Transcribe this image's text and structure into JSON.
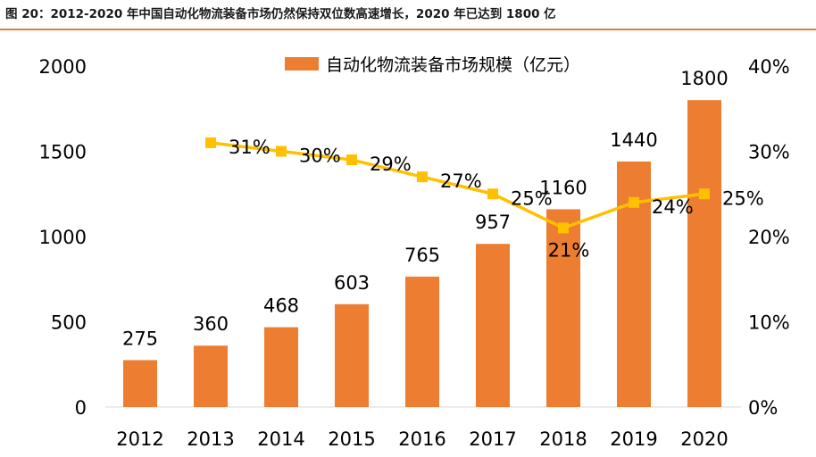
{
  "figure": {
    "title": "图 20：2012-2020 年中国自动化物流装备市场仍然保持双位数高速增长，2020 年已达到 1800 亿"
  },
  "colors": {
    "bar": "#ed7d31",
    "line": "#ffc000",
    "title_rule": "#e07b39"
  },
  "chart_data": {
    "type": "bar",
    "categories": [
      "2012",
      "2013",
      "2014",
      "2015",
      "2016",
      "2017",
      "2018",
      "2019",
      "2020"
    ],
    "series": [
      {
        "name": "自动化物流装备市场规模（亿元）",
        "type": "bar",
        "axis": "left",
        "values": [
          275,
          360,
          468,
          603,
          765,
          957,
          1160,
          1440,
          1800
        ],
        "labels": [
          "275",
          "360",
          "468",
          "603",
          "765",
          "957",
          "1160",
          "1440",
          "1800"
        ]
      },
      {
        "name": "",
        "type": "line",
        "axis": "right",
        "values": [
          null,
          31,
          30,
          29,
          27,
          25,
          21,
          24,
          25
        ],
        "labels": [
          null,
          "31%",
          "30%",
          "29%",
          "27%",
          "25%",
          "21%",
          "24%",
          "25%"
        ]
      }
    ],
    "y_left": {
      "lim": [
        0,
        2000
      ],
      "ticks": [
        "0",
        "500",
        "1000",
        "1500",
        "2000"
      ],
      "tick_values": [
        0,
        500,
        1000,
        1500,
        2000
      ]
    },
    "y_right": {
      "lim": [
        0,
        40
      ],
      "ticks": [
        "0%",
        "10%",
        "20%",
        "30%",
        "40%"
      ],
      "tick_values": [
        0,
        10,
        20,
        30,
        40
      ]
    },
    "legend": {
      "position": "top",
      "label": "自动化物流装备市场规模（亿元）"
    },
    "grid": false
  }
}
